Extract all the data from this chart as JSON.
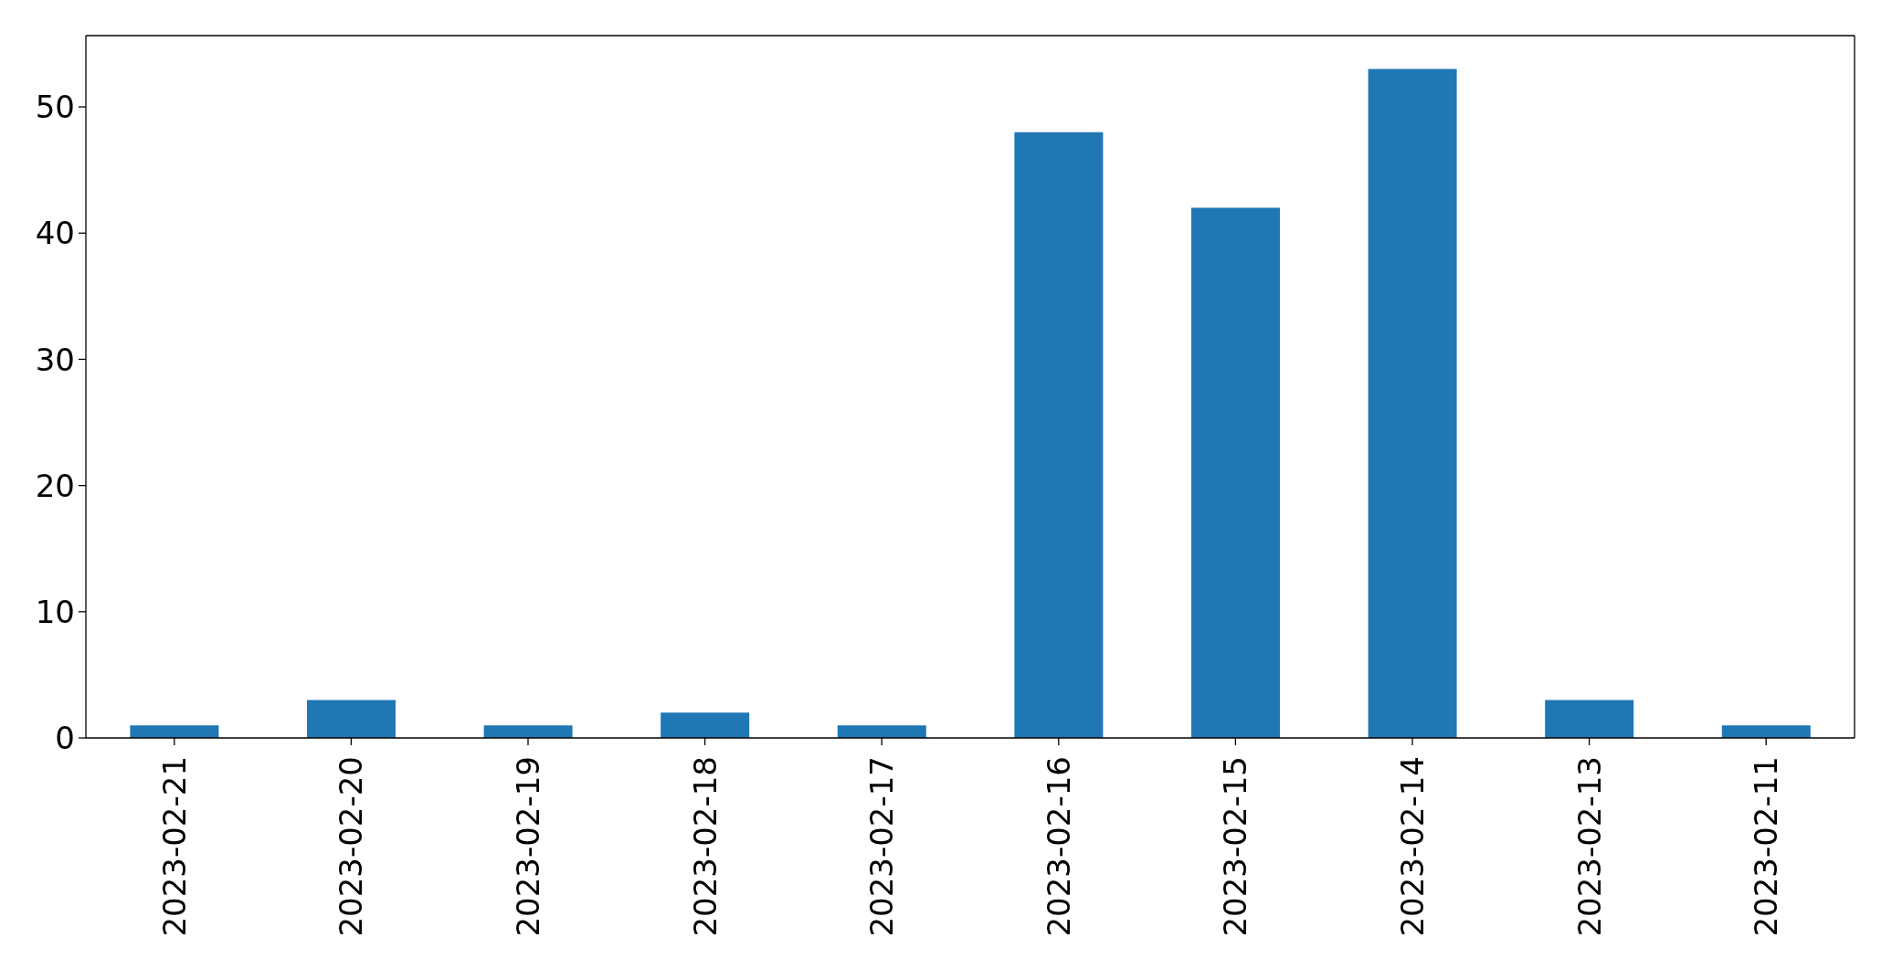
{
  "chart_data": {
    "type": "bar",
    "categories": [
      "2023-02-21",
      "2023-02-20",
      "2023-02-19",
      "2023-02-18",
      "2023-02-17",
      "2023-02-16",
      "2023-02-15",
      "2023-02-14",
      "2023-02-13",
      "2023-02-11"
    ],
    "values": [
      1,
      3,
      1,
      2,
      1,
      48,
      42,
      53,
      3,
      1
    ],
    "color": "#1f77b4",
    "ylim": [
      0,
      55.65
    ],
    "yticks": [
      0,
      10,
      20,
      30,
      40,
      50
    ]
  }
}
